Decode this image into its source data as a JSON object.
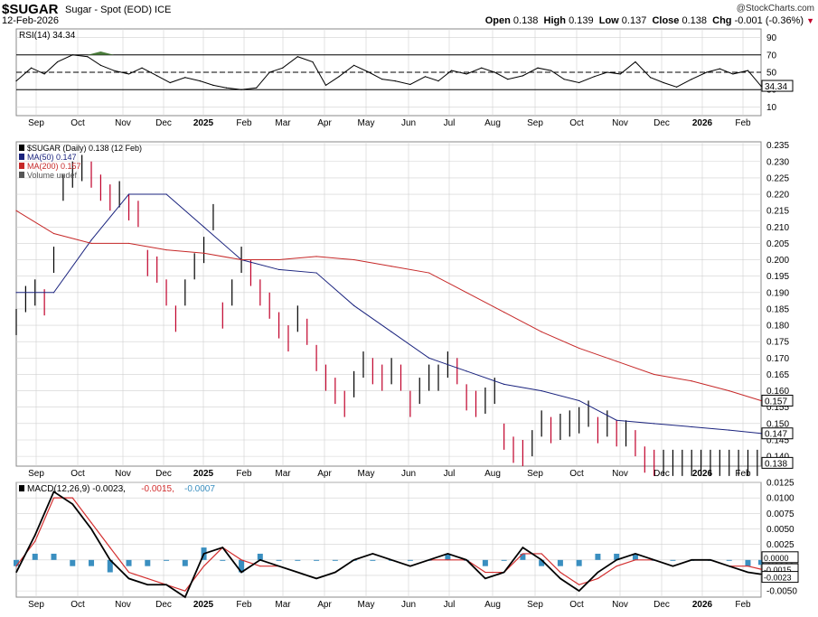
{
  "header": {
    "symbol": "$SUGAR",
    "description": "Sugar - Spot (EOD) ICE",
    "date": "12-Feb-2026",
    "watermark": "@StockCharts.com",
    "open_label": "Open",
    "open": "0.138",
    "high_label": "High",
    "high": "0.139",
    "low_label": "Low",
    "low": "0.137",
    "close_label": "Close",
    "close": "0.138",
    "chg_label": "Chg",
    "chg": "-0.001 (-0.36%)",
    "chg_arrow": "▼"
  },
  "colors": {
    "background": "#ffffff",
    "price_bars": "#000000",
    "down_bars": "#c0002a",
    "ma50": "#1a237e",
    "ma200": "#c62828",
    "macd_line": "#000000",
    "signal_line": "#d32f2f",
    "histogram": "#3a8fc0",
    "grid": "#d0d0d0",
    "rsi_fill": "#4a7c3a"
  },
  "chart_data": [
    {
      "type": "line",
      "title": "RSI(14) 34.34",
      "legend": "RSI(14) 34.34",
      "ylim": [
        0,
        100
      ],
      "y_ticks": [
        "90",
        "70",
        "50",
        "30",
        "10"
      ],
      "reference_lines": [
        70,
        50,
        30
      ],
      "last_value_label": "34.34",
      "x_months": [
        "Sep",
        "Oct",
        "Nov",
        "Dec",
        "2025",
        "Feb",
        "Mar",
        "Apr",
        "May",
        "Jun",
        "Jul",
        "Aug",
        "Sep",
        "Oct",
        "Nov",
        "Dec",
        "2026",
        "Feb"
      ],
      "series": [
        {
          "name": "RSI(14)",
          "x": [
            0,
            8,
            15,
            22,
            30,
            38,
            45,
            52,
            60,
            67,
            75,
            82,
            90,
            98,
            105,
            112,
            120,
            128,
            135,
            142,
            150,
            158,
            165,
            172,
            180,
            188,
            195,
            202,
            210,
            218,
            225,
            232,
            240,
            248,
            255,
            262,
            270,
            278,
            285,
            292,
            300,
            308,
            315,
            322,
            330,
            338,
            345,
            352,
            360,
            368,
            375,
            382,
            390,
            397
          ],
          "values": [
            40,
            55,
            48,
            62,
            70,
            68,
            58,
            52,
            48,
            55,
            46,
            38,
            44,
            40,
            35,
            32,
            30,
            32,
            50,
            55,
            68,
            62,
            35,
            45,
            58,
            50,
            42,
            40,
            36,
            45,
            40,
            52,
            48,
            55,
            50,
            42,
            46,
            55,
            52,
            42,
            38,
            45,
            50,
            48,
            62,
            44,
            38,
            33,
            42,
            50,
            54,
            48,
            52,
            34
          ]
        }
      ]
    },
    {
      "type": "bar",
      "title": "$SUGAR (Daily) 0.138 (12 Feb)",
      "legend": [
        {
          "name": "$SUGAR (Daily) 0.138 (12 Feb)"
        },
        {
          "name": "MA(50) 0.147"
        },
        {
          "name": "MA(200) 0.157"
        },
        {
          "name": "Volume undef"
        }
      ],
      "ylim": [
        0.137,
        0.236
      ],
      "y_ticks": [
        "0.235",
        "0.230",
        "0.225",
        "0.220",
        "0.215",
        "0.210",
        "0.205",
        "0.200",
        "0.195",
        "0.190",
        "0.185",
        "0.180",
        "0.175",
        "0.170",
        "0.165",
        "0.160",
        "0.155",
        "0.150",
        "0.145",
        "0.140"
      ],
      "last_value_labels": [
        "0.157",
        "0.147",
        "0.138"
      ],
      "x_months": [
        "Sep",
        "Oct",
        "Nov",
        "Dec",
        "2025",
        "Feb",
        "Mar",
        "Apr",
        "May",
        "Jun",
        "Jul",
        "Aug",
        "Sep",
        "Oct",
        "Nov",
        "Dec",
        "2026",
        "Feb"
      ],
      "series": [
        {
          "name": "$SUGAR (Daily)",
          "x": [
            0,
            5,
            10,
            15,
            20,
            25,
            30,
            35,
            40,
            45,
            50,
            55,
            60,
            65,
            70,
            75,
            80,
            85,
            90,
            95,
            100,
            105,
            110,
            115,
            120,
            125,
            130,
            135,
            140,
            145,
            150,
            155,
            160,
            165,
            170,
            175,
            180,
            185,
            190,
            195,
            200,
            205,
            210,
            215,
            220,
            225,
            230,
            235,
            240,
            245,
            250,
            255,
            260,
            265,
            270,
            275,
            280,
            285,
            290,
            295,
            300,
            305,
            310,
            315,
            320,
            325,
            330,
            335,
            340,
            345,
            350,
            355,
            360,
            365,
            370,
            375,
            380,
            385,
            390,
            395
          ],
          "values": [
            0.181,
            0.188,
            0.19,
            0.187,
            0.2,
            0.222,
            0.226,
            0.228,
            0.226,
            0.222,
            0.219,
            0.22,
            0.216,
            0.214,
            0.199,
            0.197,
            0.19,
            0.182,
            0.19,
            0.198,
            0.203,
            0.213,
            0.183,
            0.19,
            0.2,
            0.196,
            0.19,
            0.186,
            0.18,
            0.176,
            0.182,
            0.178,
            0.17,
            0.164,
            0.16,
            0.156,
            0.162,
            0.168,
            0.166,
            0.164,
            0.166,
            0.164,
            0.156,
            0.16,
            0.164,
            0.164,
            0.168,
            0.166,
            0.158,
            0.156,
            0.157,
            0.16,
            0.146,
            0.142,
            0.141,
            0.144,
            0.15,
            0.148,
            0.149,
            0.15,
            0.151,
            0.153,
            0.148,
            0.15,
            0.147,
            0.147,
            0.144,
            0.139,
            0.138,
            0.138,
            0.138,
            0.138,
            0.138,
            0.138,
            0.138,
            0.138,
            0.138,
            0.138,
            0.138,
            0.138
          ]
        },
        {
          "name": "MA(50)",
          "x": [
            0,
            20,
            40,
            60,
            80,
            100,
            120,
            140,
            160,
            180,
            200,
            220,
            240,
            260,
            280,
            300,
            320,
            340,
            360,
            380,
            397
          ],
          "values": [
            0.19,
            0.19,
            0.206,
            0.22,
            0.22,
            0.21,
            0.2,
            0.197,
            0.196,
            0.186,
            0.178,
            0.17,
            0.166,
            0.162,
            0.16,
            0.157,
            0.151,
            0.15,
            0.149,
            0.148,
            0.147
          ]
        },
        {
          "name": "MA(200)",
          "x": [
            0,
            20,
            40,
            60,
            80,
            100,
            120,
            140,
            160,
            180,
            200,
            220,
            240,
            260,
            280,
            300,
            320,
            340,
            360,
            380,
            397
          ],
          "values": [
            0.215,
            0.208,
            0.205,
            0.205,
            0.203,
            0.202,
            0.2,
            0.2,
            0.201,
            0.2,
            0.198,
            0.196,
            0.19,
            0.184,
            0.178,
            0.173,
            0.169,
            0.165,
            0.163,
            0.16,
            0.157
          ]
        }
      ]
    },
    {
      "type": "line",
      "title": "MACD(12,26,9) -0.0023, -0.0015, -0.0007",
      "legend": [
        {
          "name": "MACD(12,26,9) -0.0023"
        },
        {
          "name": "-0.0015"
        },
        {
          "name": "-0.0007"
        }
      ],
      "ylim": [
        -0.006,
        0.0125
      ],
      "y_ticks": [
        "0.0125",
        "0.0100",
        "0.0075",
        "0.0050",
        "0.0025",
        "0.0000",
        "-0.0025",
        "-0.0050"
      ],
      "last_value_labels": [
        "0.0000",
        "-0.0015",
        "-0.0023"
      ],
      "x_months": [
        "Sep",
        "Oct",
        "Nov",
        "Dec",
        "2025",
        "Feb",
        "Mar",
        "Apr",
        "May",
        "Jun",
        "Jul",
        "Aug",
        "Sep",
        "Oct",
        "Nov",
        "Dec",
        "2026",
        "Feb"
      ],
      "series": [
        {
          "name": "MACD",
          "x": [
            0,
            10,
            20,
            30,
            40,
            50,
            60,
            70,
            80,
            90,
            100,
            110,
            120,
            130,
            140,
            150,
            160,
            170,
            180,
            190,
            200,
            210,
            220,
            230,
            240,
            250,
            260,
            270,
            280,
            290,
            300,
            310,
            320,
            330,
            340,
            350,
            360,
            370,
            380,
            390,
            397
          ],
          "values": [
            -0.002,
            0.004,
            0.011,
            0.009,
            0.005,
            0.0,
            -0.003,
            -0.004,
            -0.004,
            -0.006,
            0.001,
            0.002,
            -0.002,
            0.0,
            -0.001,
            -0.002,
            -0.003,
            -0.002,
            0.0,
            0.001,
            0.0,
            -0.001,
            0.0,
            0.001,
            0.0,
            -0.003,
            -0.002,
            0.002,
            0.0,
            -0.003,
            -0.005,
            -0.002,
            0.0,
            0.001,
            0.0,
            -0.001,
            0.0,
            0.0,
            -0.001,
            -0.002,
            -0.0023
          ]
        },
        {
          "name": "Signal",
          "x": [
            0,
            10,
            20,
            30,
            40,
            50,
            60,
            70,
            80,
            90,
            100,
            110,
            120,
            130,
            140,
            150,
            160,
            170,
            180,
            190,
            200,
            210,
            220,
            230,
            240,
            250,
            260,
            270,
            280,
            290,
            300,
            310,
            320,
            330,
            340,
            350,
            360,
            370,
            380,
            390,
            397
          ],
          "values": [
            -0.001,
            0.003,
            0.01,
            0.01,
            0.006,
            0.002,
            -0.002,
            -0.003,
            -0.004,
            -0.005,
            -0.001,
            0.002,
            0.0,
            -0.001,
            -0.001,
            -0.002,
            -0.003,
            -0.002,
            0.0,
            0.001,
            0.0,
            -0.001,
            0.0,
            0.0,
            0.0,
            -0.002,
            -0.002,
            0.001,
            0.001,
            -0.002,
            -0.004,
            -0.003,
            -0.001,
            0.0,
            0.0,
            -0.001,
            0.0,
            0.0,
            -0.001,
            -0.001,
            -0.0015
          ]
        }
      ]
    }
  ]
}
